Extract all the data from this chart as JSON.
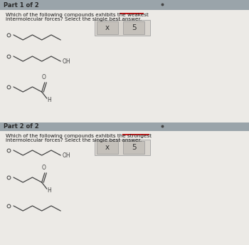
{
  "bg_color": "#c8cfd4",
  "panel_color": "#eceae6",
  "part1_header": "Part 1 of 2",
  "part2_header": "Part 2 of 2",
  "part1_question_line1": "Which of the following compounds exhibits the weakest intermolecular forces? Select the single best answer.",
  "part2_question_line1": "Which of the following compounds exhibits the strongest intermolecular forces? Select the single best answer.",
  "underline_color": "#cc1111",
  "header_color": "#9aa4aa",
  "header_text_color": "#2a2a2a",
  "question_text_color": "#1a1a1a",
  "panel_border_color": "#b0b8bc",
  "button_bg": "#d0ccc6",
  "button_border": "#aaaaaa",
  "radio_color": "#444444",
  "structure_color": "#444444",
  "dot_color": "#444444"
}
